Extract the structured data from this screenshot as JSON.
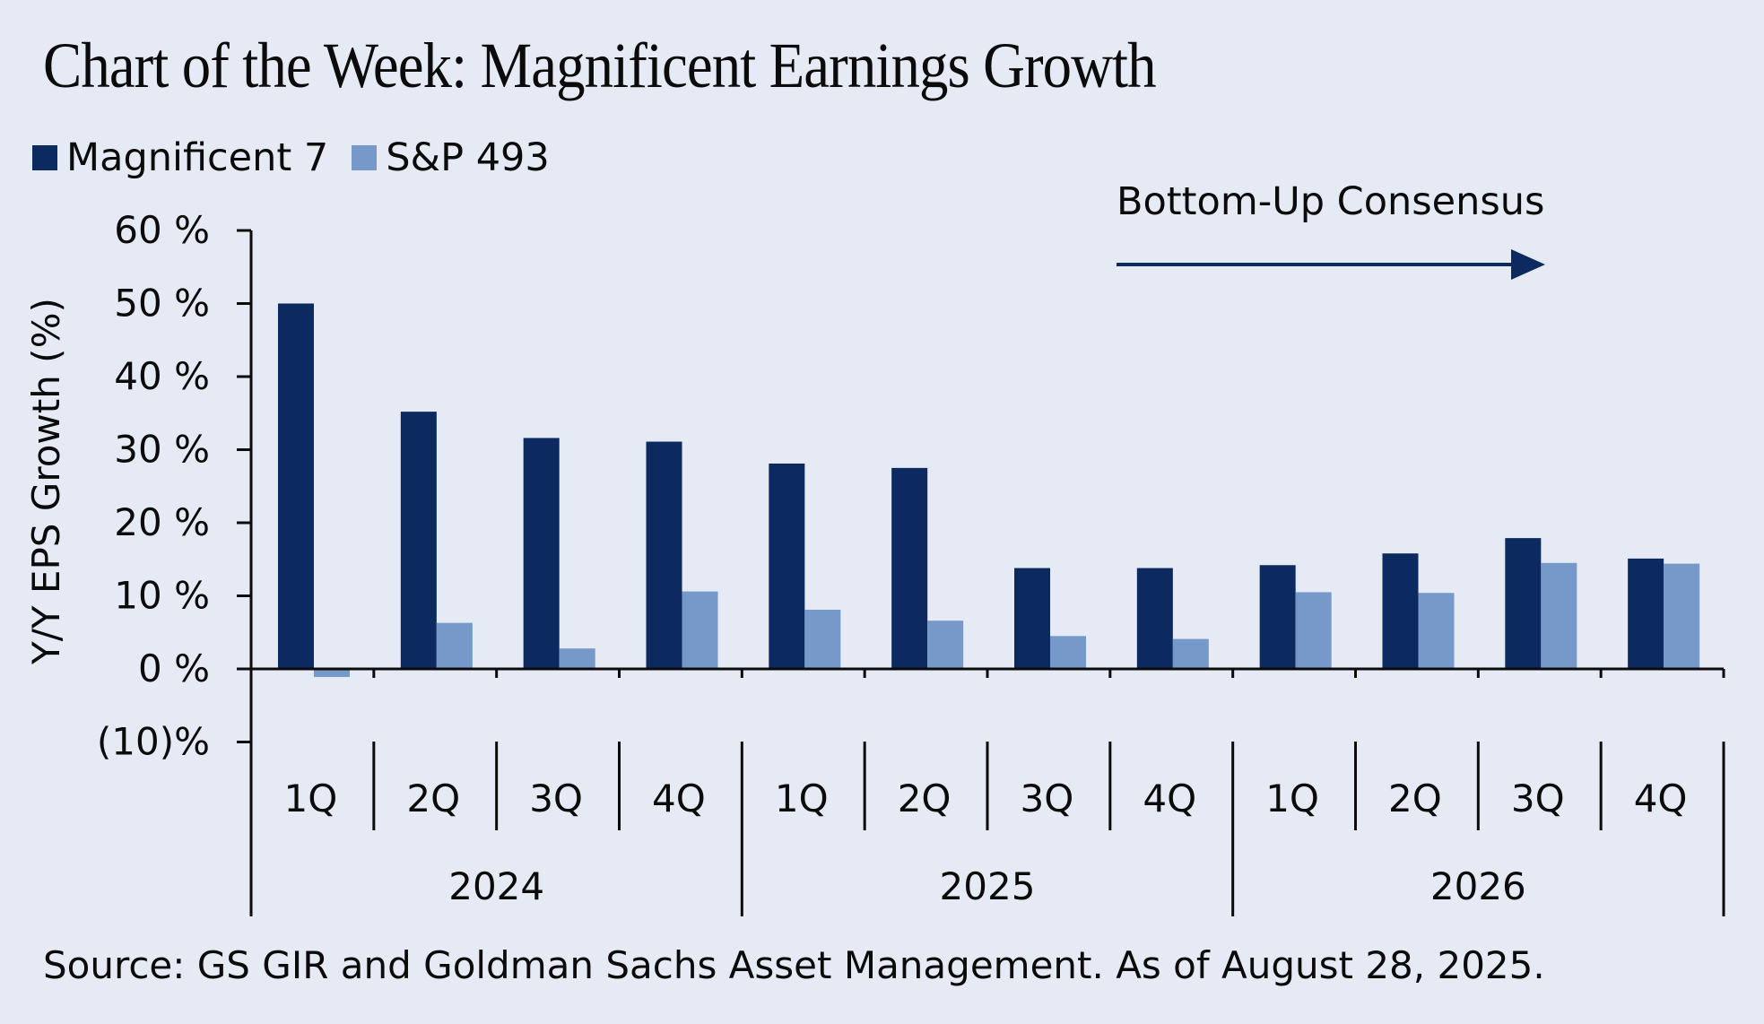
{
  "title": "Chart of the Week: Magnificent Earnings Growth",
  "source": "Source: GS GIR and Goldman Sachs Asset Management. As of August 28, 2025.",
  "colors": {
    "background": "#e5eaf4",
    "magnificent7": "#0c2a60",
    "sp493": "#7699c9",
    "axis": "#0b0b0b"
  },
  "chart_data": {
    "type": "bar",
    "title": "Chart of the Week: Magnificent Earnings Growth",
    "ylabel": "Y/Y EPS Growth (%)",
    "xlabel": "",
    "ylim": [
      -10,
      60
    ],
    "yticks": [
      -10,
      0,
      10,
      20,
      30,
      40,
      50,
      60
    ],
    "ytick_labels": [
      "(10)%",
      "0 %",
      "10 %",
      "20 %",
      "30 %",
      "40 %",
      "50 %",
      "60 %"
    ],
    "grid": false,
    "legend_position": "top-left",
    "categories": [
      "1Q",
      "2Q",
      "3Q",
      "4Q",
      "1Q",
      "2Q",
      "3Q",
      "4Q",
      "1Q",
      "2Q",
      "3Q",
      "4Q"
    ],
    "groups": [
      {
        "label": "2024",
        "count": 4
      },
      {
        "label": "2025",
        "count": 4
      },
      {
        "label": "2026",
        "count": 4
      }
    ],
    "series": [
      {
        "name": "Magnificent 7",
        "values": [
          50.0,
          35.2,
          31.6,
          31.1,
          28.1,
          27.5,
          13.8,
          13.8,
          14.2,
          15.8,
          17.9,
          15.1
        ]
      },
      {
        "name": "S&P 493",
        "values": [
          -1.1,
          6.3,
          2.8,
          10.6,
          8.1,
          6.6,
          4.5,
          4.1,
          10.5,
          10.4,
          14.5,
          14.4
        ]
      }
    ],
    "annotation": "Bottom-Up Consensus"
  }
}
